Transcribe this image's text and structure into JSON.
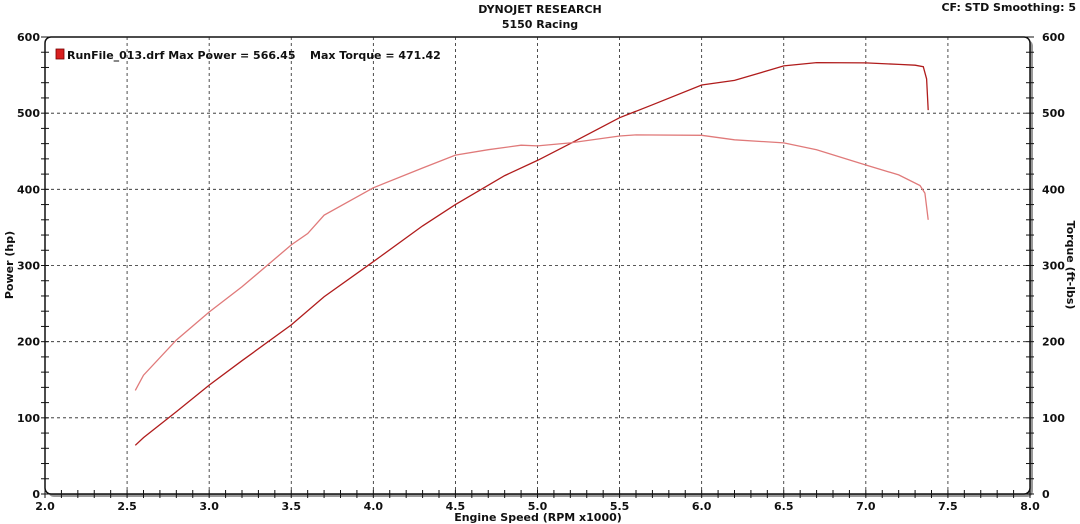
{
  "header": {
    "title": "DYNOJET RESEARCH",
    "subtitle": "5150 Racing",
    "settings": "CF: STD  Smoothing: 5"
  },
  "chart_data": {
    "type": "line",
    "title": "DYNOJET RESEARCH",
    "subtitle": "5150 Racing",
    "xlabel": "Engine Speed (RPM x1000)",
    "ylabel": "Power (hp)",
    "y2label": "Torque (ft-lbs)",
    "xlim": [
      2.0,
      8.0
    ],
    "ylim": [
      0,
      600
    ],
    "y2lim": [
      0,
      600
    ],
    "xticks": [
      "2.0",
      "2.5",
      "3.0",
      "3.5",
      "4.0",
      "4.5",
      "5.0",
      "5.5",
      "6.0",
      "6.5",
      "7.0",
      "7.5",
      "8.0"
    ],
    "yticks": [
      "0",
      "100",
      "200",
      "300",
      "400",
      "500",
      "600"
    ],
    "grid": true,
    "legend": {
      "position": "top-left",
      "text": "RunFile_013.drf Max Power = 566.45",
      "torque_text": "Max Torque = 471.42"
    },
    "series": [
      {
        "key": "power",
        "color": "#b01c1c",
        "x": [
          2.55,
          2.6,
          2.8,
          3.0,
          3.2,
          3.5,
          3.7,
          4.0,
          4.3,
          4.5,
          4.8,
          5.0,
          5.2,
          5.5,
          5.7,
          6.0,
          6.2,
          6.5,
          6.7,
          7.0,
          7.2,
          7.3,
          7.35,
          7.37,
          7.38
        ],
        "y": [
          64,
          74,
          108,
          143,
          175,
          222,
          259,
          305,
          352,
          380,
          418,
          438,
          460,
          494,
          511,
          537,
          543,
          562,
          566.45,
          566,
          564,
          563,
          561,
          545,
          504
        ]
      },
      {
        "key": "torque",
        "color": "#e07a7a",
        "x": [
          2.55,
          2.6,
          2.8,
          3.0,
          3.2,
          3.5,
          3.6,
          3.7,
          4.0,
          4.3,
          4.5,
          4.7,
          4.9,
          5.0,
          5.2,
          5.5,
          5.6,
          6.0,
          6.2,
          6.5,
          6.7,
          7.0,
          7.2,
          7.33,
          7.36,
          7.38
        ],
        "y": [
          136,
          156,
          202,
          239,
          272,
          327,
          342,
          366,
          402,
          428,
          445,
          452,
          458,
          457,
          461,
          470,
          471.42,
          471,
          465,
          461,
          452,
          432,
          419,
          405,
          395,
          360
        ]
      }
    ]
  }
}
